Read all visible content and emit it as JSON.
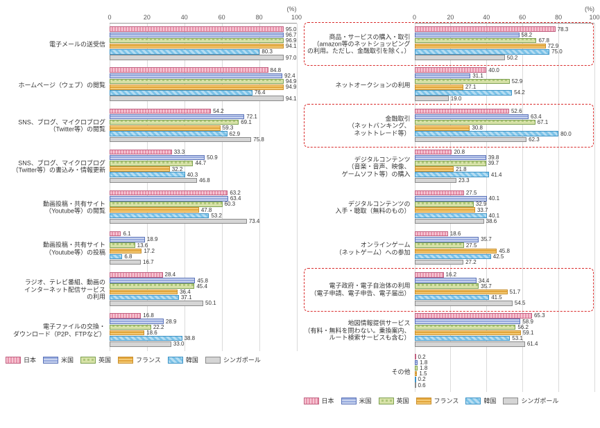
{
  "unit_label": "(%)",
  "axis": {
    "min": 0,
    "max": 100,
    "step": 20,
    "ticks": [
      0,
      20,
      40,
      60,
      80,
      100
    ]
  },
  "countries": [
    {
      "key": "jp",
      "label": "日本",
      "pattern_class": "p-jp",
      "border": "#c06080"
    },
    {
      "key": "us",
      "label": "米国",
      "pattern_class": "p-us",
      "border": "#5a72b8"
    },
    {
      "key": "uk",
      "label": "英国",
      "pattern_class": "p-uk",
      "border": "#7ca050"
    },
    {
      "key": "fr",
      "label": "フランス",
      "pattern_class": "p-fr",
      "border": "#c98f2e"
    },
    {
      "key": "kr",
      "label": "韓国",
      "pattern_class": "p-kr",
      "border": "#3c93c6"
    },
    {
      "key": "sg",
      "label": "シンガポール",
      "pattern_class": "p-sg",
      "border": "#8a8a8a"
    }
  ],
  "panels": [
    {
      "side": "left",
      "label_width": 150,
      "groups": [
        {
          "label": "電子メールの送受信",
          "values": [
            95.0,
            96.7,
            96.9,
            94.1,
            80.3,
            97.0
          ]
        },
        {
          "label": "ホームページ（ウェブ）の閲覧",
          "values": [
            84.8,
            92.4,
            94.9,
            94.9,
            76.4,
            94.1
          ]
        },
        {
          "label": "SNS、ブログ、マイクロブログ\n（Twitter等）の閲覧",
          "values": [
            54.2,
            72.1,
            69.1,
            59.3,
            62.9,
            75.8
          ]
        },
        {
          "label": "SNS、ブログ、マイクロブログ\n（Twitter等）の書込み・情報更新",
          "values": [
            33.3,
            50.9,
            44.7,
            32.2,
            40.3,
            46.8
          ]
        },
        {
          "label": "動画投稿・共有サイト\n（Youtube等）の閲覧",
          "values": [
            63.2,
            63.4,
            60.3,
            47.8,
            53.2,
            73.4
          ]
        },
        {
          "label": "動画投稿・共有サイト\n（Youtube等）の投稿",
          "values": [
            6.1,
            18.9,
            13.6,
            17.2,
            6.8,
            16.7
          ]
        },
        {
          "label": "ラジオ、テレビ番組、動画の\nインターネット配信サービス\nの利用",
          "values": [
            28.4,
            45.8,
            45.4,
            36.4,
            37.1,
            50.1
          ]
        },
        {
          "label": "電子ファイルの交換・\nダウンロード（P2P、FTPなど）",
          "values": [
            16.8,
            28.9,
            22.2,
            18.6,
            38.8,
            33.0
          ]
        }
      ],
      "highlights": []
    },
    {
      "side": "right",
      "label_width": 160,
      "groups": [
        {
          "label": "商品・サービスの購入・取引\n（amazon等のネットショッピング\nの利用。ただし、金融取引を除く。）",
          "values": [
            78.3,
            58.2,
            67.8,
            72.9,
            75.0,
            50.2
          ]
        },
        {
          "label": "ネットオークションの利用",
          "values": [
            40.0,
            31.1,
            52.9,
            27.1,
            54.2,
            19.0
          ]
        },
        {
          "label": "金融取引\n（ネットバンキング、\nネットトレード等）",
          "values": [
            52.6,
            63.4,
            67.1,
            30.8,
            80.0,
            62.3
          ]
        },
        {
          "label": "デジタルコンテンツ\n（音楽・音声、映像、\nゲームソフト等）の購入",
          "values": [
            20.8,
            39.8,
            39.7,
            21.8,
            41.4,
            23.3
          ]
        },
        {
          "label": "デジタルコンテンツの\n入手・聴取（無料のもの）",
          "values": [
            27.5,
            40.1,
            32.9,
            33.7,
            40.1,
            38.6
          ]
        },
        {
          "label": "オンラインゲーム\n（ネットゲーム）への参加",
          "values": [
            18.6,
            35.7,
            27.5,
            45.8,
            42.5,
            27.2
          ]
        },
        {
          "label": "電子政府・電子自治体の利用\n（電子申請、電子申告、電子届出）",
          "values": [
            16.2,
            34.4,
            35.7,
            51.7,
            41.5,
            54.5
          ]
        },
        {
          "label": "地図情報提供サービス\n（有料・無料を問わない。乗換案内、\nルート検索サービスも含む）",
          "values": [
            65.3,
            58.9,
            56.2,
            59.1,
            53.1,
            61.4
          ]
        },
        {
          "label": "その他",
          "values": [
            0.2,
            1.8,
            1.8,
            1.5,
            0.2,
            0.6
          ]
        }
      ],
      "highlights": [
        0,
        2,
        6
      ]
    }
  ],
  "style": {
    "bar_height": 7.5,
    "row_height": 8.2,
    "value_fontsize": 8,
    "label_fontsize": 9,
    "grid_color": "rgba(150,150,150,0.35)",
    "highlight_color": "#d92b2b",
    "background": "#ffffff"
  }
}
